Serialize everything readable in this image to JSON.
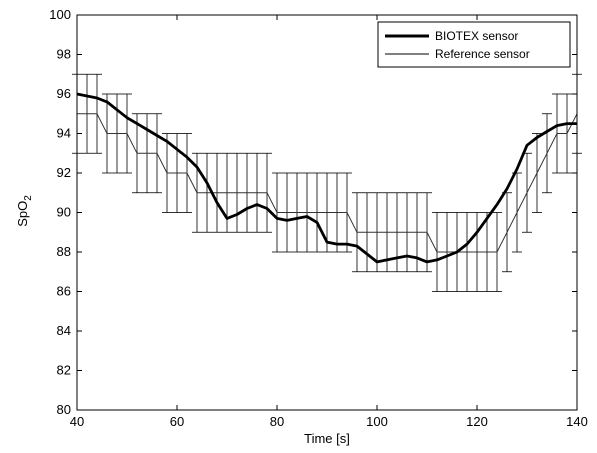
{
  "chart_data": {
    "type": "line",
    "xlabel": "Time [s]",
    "ylabel_main": "SpO",
    "ylabel_sub": "2",
    "xlim": [
      40,
      140
    ],
    "ylim": [
      80,
      100
    ],
    "xticks": [
      40,
      60,
      80,
      100,
      120,
      140
    ],
    "yticks": [
      80,
      82,
      84,
      86,
      88,
      90,
      92,
      94,
      96,
      98,
      100
    ],
    "grid": false,
    "legend_position": "top-right",
    "series": [
      {
        "name": "BIOTEX sensor",
        "color": "#000000",
        "style": "thick",
        "x": [
          40,
          42,
          44,
          46,
          48,
          50,
          52,
          54,
          56,
          58,
          60,
          62,
          64,
          66,
          68,
          70,
          72,
          74,
          76,
          78,
          80,
          82,
          84,
          86,
          88,
          90,
          92,
          94,
          96,
          98,
          100,
          102,
          104,
          106,
          108,
          110,
          112,
          114,
          116,
          118,
          120,
          122,
          124,
          126,
          128,
          130,
          132,
          134,
          136,
          138,
          140
        ],
        "y": [
          96.0,
          95.9,
          95.8,
          95.6,
          95.2,
          94.8,
          94.5,
          94.2,
          93.9,
          93.6,
          93.2,
          92.8,
          92.3,
          91.5,
          90.5,
          89.7,
          89.9,
          90.2,
          90.4,
          90.2,
          89.7,
          89.6,
          89.7,
          89.8,
          89.5,
          88.5,
          88.4,
          88.4,
          88.3,
          87.9,
          87.5,
          87.6,
          87.7,
          87.8,
          87.7,
          87.5,
          87.6,
          87.8,
          88.0,
          88.4,
          89.0,
          89.7,
          90.4,
          91.2,
          92.2,
          93.4,
          93.8,
          94.1,
          94.4,
          94.5,
          94.5
        ]
      },
      {
        "name": "Reference sensor",
        "color": "#000000",
        "style": "thin",
        "x": [
          40,
          42,
          44,
          46,
          48,
          50,
          52,
          54,
          56,
          58,
          60,
          62,
          64,
          66,
          68,
          70,
          72,
          74,
          76,
          78,
          80,
          82,
          84,
          86,
          88,
          90,
          92,
          94,
          96,
          98,
          100,
          102,
          104,
          106,
          108,
          110,
          112,
          114,
          116,
          118,
          120,
          122,
          124,
          126,
          128,
          130,
          132,
          134,
          136,
          138,
          140
        ],
        "y": [
          95,
          95,
          95,
          94,
          94,
          94,
          93,
          93,
          93,
          92,
          92,
          92,
          91,
          91,
          91,
          91,
          91,
          91,
          91,
          91,
          90,
          90,
          90,
          90,
          90,
          90,
          90,
          90,
          89,
          89,
          89,
          89,
          89,
          89,
          89,
          89,
          88,
          88,
          88,
          88,
          88,
          88,
          88,
          89,
          90,
          91,
          92,
          93,
          94,
          94,
          95
        ],
        "error": [
          2,
          2,
          2,
          2,
          2,
          2,
          2,
          2,
          2,
          2,
          2,
          2,
          2,
          2,
          2,
          2,
          2,
          2,
          2,
          2,
          2,
          2,
          2,
          2,
          2,
          2,
          2,
          2,
          2,
          2,
          2,
          2,
          2,
          2,
          2,
          2,
          2,
          2,
          2,
          2,
          2,
          2,
          2,
          2,
          2,
          2,
          2,
          2,
          2,
          2,
          2
        ]
      }
    ]
  }
}
